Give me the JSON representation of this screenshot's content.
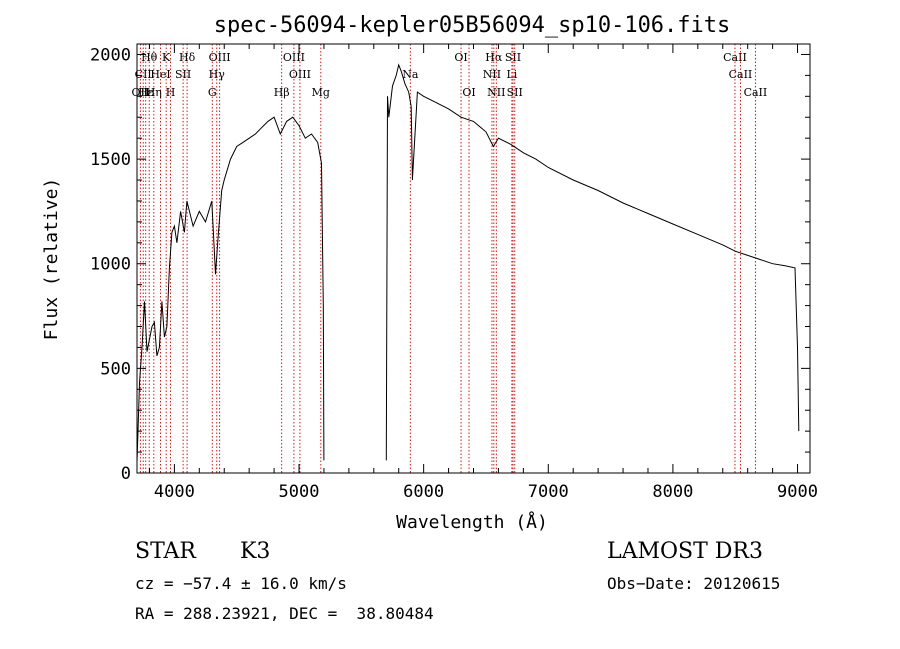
{
  "chart_data": {
    "type": "line",
    "title": "spec-56094-kepler05B56094_sp10-106.fits",
    "xlabel": "Wavelength (Å)",
    "ylabel": "Flux (relative)",
    "xlim": [
      3700,
      9100
    ],
    "ylim": [
      0,
      2050
    ],
    "xticks": [
      4000,
      5000,
      6000,
      7000,
      8000,
      9000
    ],
    "yticks": [
      0,
      500,
      1000,
      1500,
      2000
    ],
    "series": [
      {
        "name": "flux",
        "segments": [
          {
            "x": [
              3700,
              3720,
              3740,
              3760,
              3780,
              3800,
              3820,
              3840,
              3860,
              3880,
              3900,
              3920,
              3940,
              3960,
              3980,
              4000,
              4020,
              4050,
              4080,
              4100,
              4150,
              4200,
              4250,
              4300,
              4330,
              4350,
              4380,
              4400,
              4450,
              4500,
              4550,
              4600,
              4650,
              4700,
              4750,
              4800,
              4850,
              4900,
              4950,
              5000,
              5050,
              5100,
              5150,
              5180,
              5195,
              5200
            ],
            "y": [
              50,
              430,
              600,
              820,
              580,
              640,
              700,
              720,
              560,
              600,
              820,
              650,
              700,
              980,
              1150,
              1180,
              1100,
              1250,
              1150,
              1300,
              1180,
              1250,
              1200,
              1300,
              950,
              1120,
              1350,
              1400,
              1500,
              1560,
              1580,
              1600,
              1620,
              1650,
              1680,
              1700,
              1620,
              1680,
              1700,
              1660,
              1600,
              1620,
              1580,
              1480,
              800,
              60
            ]
          },
          {
            "x": [
              5700,
              5710,
              5720,
              5750,
              5780,
              5800,
              5820,
              5850,
              5880,
              5900,
              5910,
              5950,
              6000,
              6100,
              6200,
              6300,
              6400,
              6500,
              6560,
              6600,
              6700,
              6800,
              6900,
              7000,
              7200,
              7400,
              7600,
              7800,
              8000,
              8200,
              8400,
              8500,
              8600,
              8700,
              8800,
              8900,
              8980,
              9000,
              9010
            ],
            "y": [
              60,
              1800,
              1700,
              1850,
              1900,
              1950,
              1920,
              1860,
              1820,
              1750,
              1400,
              1820,
              1800,
              1770,
              1740,
              1700,
              1680,
              1630,
              1560,
              1600,
              1570,
              1530,
              1500,
              1460,
              1400,
              1350,
              1290,
              1240,
              1190,
              1140,
              1090,
              1060,
              1040,
              1020,
              1000,
              990,
              980,
              600,
              200
            ]
          }
        ]
      }
    ],
    "line_markers": [
      {
        "label": "Hθ",
        "x": 3798,
        "row": 0
      },
      {
        "label": "CII",
        "x": 3750,
        "row": 1
      },
      {
        "label": "OII",
        "x": 3727,
        "row": 2
      },
      {
        "label": "Hε",
        "x": 3770,
        "row": 2
      },
      {
        "label": "K",
        "x": 3934,
        "row": 0
      },
      {
        "label": "HeI",
        "x": 3889,
        "row": 1
      },
      {
        "label": "Hη",
        "x": 3835,
        "row": 2
      },
      {
        "label": "H",
        "x": 3969,
        "row": 2
      },
      {
        "label": "Hδ",
        "x": 4102,
        "row": 0
      },
      {
        "label": "SII",
        "x": 4070,
        "row": 1
      },
      {
        "label": "OIII",
        "x": 4363,
        "row": 0
      },
      {
        "label": "Hγ",
        "x": 4340,
        "row": 1
      },
      {
        "label": "G",
        "x": 4304,
        "row": 2
      },
      {
        "label": "Hβ",
        "x": 4861,
        "row": 2
      },
      {
        "label": "OIII",
        "x": 4959,
        "row": 0
      },
      {
        "label": "OIII",
        "x": 5007,
        "row": 1
      },
      {
        "label": "Mg",
        "x": 5175,
        "row": 2
      },
      {
        "label": "Na",
        "x": 5893,
        "row": 1
      },
      {
        "label": "OI",
        "x": 6300,
        "row": 0
      },
      {
        "label": "OI",
        "x": 6364,
        "row": 2
      },
      {
        "label": "Hα",
        "x": 6563,
        "row": 0
      },
      {
        "label": "NII",
        "x": 6548,
        "row": 1
      },
      {
        "label": "NII",
        "x": 6583,
        "row": 2
      },
      {
        "label": "Li",
        "x": 6708,
        "row": 1
      },
      {
        "label": "SII",
        "x": 6717,
        "row": 0
      },
      {
        "label": "SII",
        "x": 6731,
        "row": 2
      },
      {
        "label": "CaII",
        "x": 8498,
        "row": 0
      },
      {
        "label": "CaII",
        "x": 8542,
        "row": 1
      },
      {
        "label": "CaII",
        "x": 8662,
        "row": 2
      }
    ],
    "marker_color": "#cc0000",
    "line_color": "#000000"
  },
  "info": {
    "class": "STAR",
    "subclass": "K3",
    "survey": "LAMOST DR3",
    "cz": "cz = −57.4 ± 16.0 km/s",
    "obs_date": "Obs−Date: 20120615",
    "coords": "RA = 288.23921, DEC =  38.80484"
  }
}
